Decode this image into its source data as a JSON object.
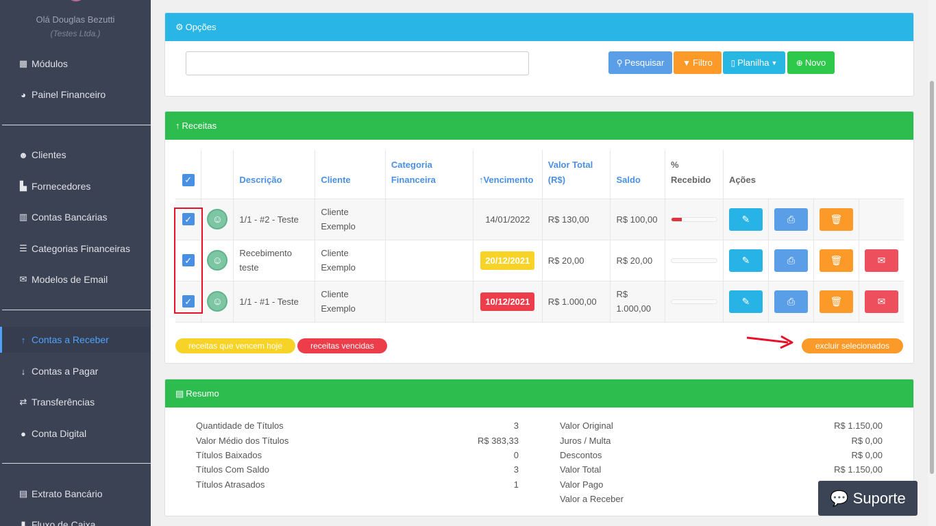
{
  "sidebar": {
    "hello": "Olá Douglas Bezutti",
    "company": "(Testes Ltda.)",
    "items": [
      {
        "label": "Módulos",
        "icon": "grid-icon"
      },
      {
        "label": "Painel Financeiro",
        "icon": "pie-chart-icon"
      },
      {
        "label": "Clientes",
        "icon": "users-icon"
      },
      {
        "label": "Fornecedores",
        "icon": "industry-icon"
      },
      {
        "label": "Contas Bancárias",
        "icon": "building-icon"
      },
      {
        "label": "Categorias Financeiras",
        "icon": "list-icon"
      },
      {
        "label": "Modelos de Email",
        "icon": "mail-template-icon"
      },
      {
        "label": "Contas a Receber",
        "icon": "arrow-up-icon",
        "active": true
      },
      {
        "label": "Contas a Pagar",
        "icon": "arrow-down-icon"
      },
      {
        "label": "Transferências",
        "icon": "exchange-icon"
      },
      {
        "label": "Conta Digital",
        "icon": "piggy-bank-icon"
      },
      {
        "label": "Extrato Bancário",
        "icon": "statement-icon"
      },
      {
        "label": "Fluxo de Caixa",
        "icon": "bar-chart-icon"
      }
    ]
  },
  "options": {
    "title": "Opções",
    "search_value": "",
    "buttons": {
      "search": "Pesquisar",
      "filter": "Filtro",
      "sheet": "Planilha",
      "new": "Novo"
    }
  },
  "receitas": {
    "title": "Receitas",
    "columns": {
      "descricao": "Descrição",
      "cliente": "Cliente",
      "categoria": "Categoria Financeira",
      "vencimento": "Vencimento",
      "valor_total": "Valor Total (R$)",
      "saldo": "Saldo",
      "recebido": "% Recebido",
      "acoes": "Ações"
    },
    "rows": [
      {
        "descricao": "1/1 - #2 - Teste",
        "cliente": "Cliente Exemplo",
        "categoria": "",
        "vencimento": "14/01/2022",
        "vencimento_status": "normal",
        "valor_total": "R$ 130,00",
        "saldo": "R$ 100,00",
        "recebido_pct": 23,
        "email": false
      },
      {
        "descricao": "Recebimento teste",
        "cliente": "Cliente Exemplo",
        "categoria": "",
        "vencimento": "20/12/2021",
        "vencimento_status": "today",
        "valor_total": "R$ 20,00",
        "saldo": "R$ 20,00",
        "recebido_pct": 0,
        "email": true
      },
      {
        "descricao": "1/1 - #1 - Teste",
        "cliente": "Cliente Exemplo",
        "categoria": "",
        "vencimento": "10/12/2021",
        "vencimento_status": "overdue",
        "valor_total": "R$ 1.000,00",
        "saldo": "R$ 1.000,00",
        "recebido_pct": 0,
        "email": true
      }
    ],
    "legend": {
      "today": "receitas que vencem hoje",
      "overdue": "receitas vencidas"
    },
    "delete_selected": "excluir selecionados"
  },
  "resumo": {
    "title": "Resumo",
    "left": [
      {
        "label": "Quantidade de Títulos",
        "value": "3"
      },
      {
        "label": "Valor Médio dos Títulos",
        "value": "R$ 383,33"
      },
      {
        "label": "Títulos Baixados",
        "value": "0"
      },
      {
        "label": "Títulos Com Saldo",
        "value": "3"
      },
      {
        "label": "Títulos Atrasados",
        "value": "1"
      }
    ],
    "right": [
      {
        "label": "Valor Original",
        "value": "R$ 1.150,00"
      },
      {
        "label": "Juros / Multa",
        "value": "R$ 0,00"
      },
      {
        "label": "Descontos",
        "value": "R$ 0,00"
      },
      {
        "label": "Valor Total",
        "value": "R$ 1.150,00"
      },
      {
        "label": "Valor Pago",
        "value": ""
      },
      {
        "label": "Valor a Receber",
        "value": ""
      }
    ]
  },
  "support": {
    "label": "Suporte"
  },
  "colors": {
    "sidebar_bg": "#3b4254",
    "blue_header": "#29b6e6",
    "green_header": "#2dbd4f",
    "btn_search": "#5b9ee8",
    "btn_filter": "#fb9a28",
    "btn_sheet": "#28b6e2",
    "btn_new": "#2ec84a",
    "badge_today": "#f7d327",
    "badge_overdue": "#ee3d4a",
    "action_edit": "#27b3e6",
    "action_print": "#5b9ee8",
    "action_delete": "#fb9a28",
    "action_email": "#ee4f5c"
  }
}
